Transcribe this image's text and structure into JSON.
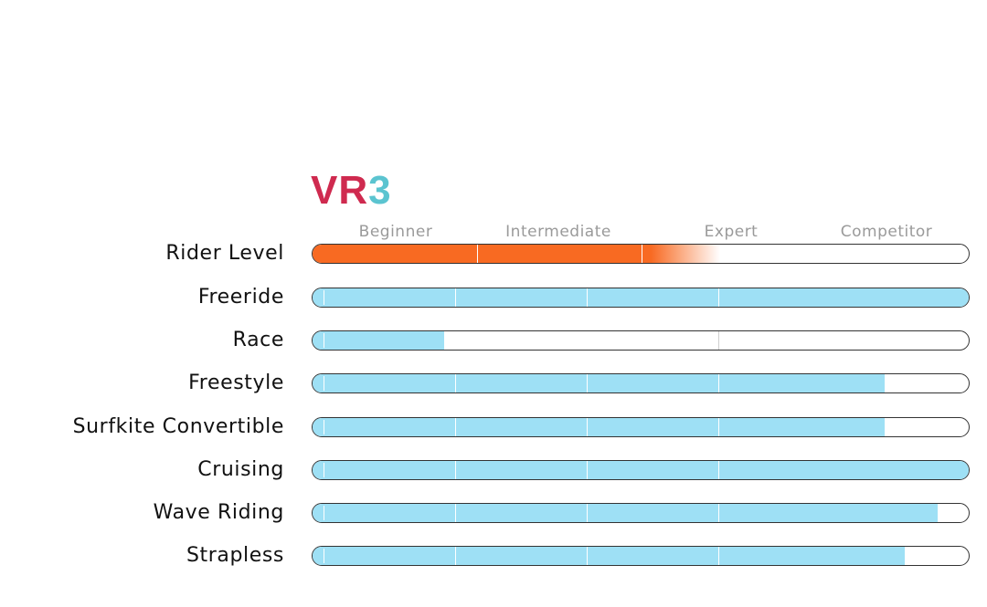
{
  "logo": {
    "part1": "VR",
    "part2": "3"
  },
  "colors": {
    "orange": "#f86a22",
    "blue": "#9ee0f5",
    "logo_red": "#cf2a4f",
    "logo_teal": "#5bc4d0"
  },
  "chart_data": {
    "type": "bar",
    "scale_labels": [
      "Beginner",
      "Intermediate",
      "Expert",
      "Competitor"
    ],
    "categories": [
      "Rider Level",
      "Freeride",
      "Race",
      "Freestyle",
      "Surfkite Convertible",
      "Cruising",
      "Wave Riding",
      "Strapless"
    ],
    "values": [
      0.62,
      1.0,
      0.2,
      0.87,
      0.87,
      1.0,
      0.95,
      0.9
    ],
    "xlim": [
      0,
      1
    ],
    "grid": true
  }
}
